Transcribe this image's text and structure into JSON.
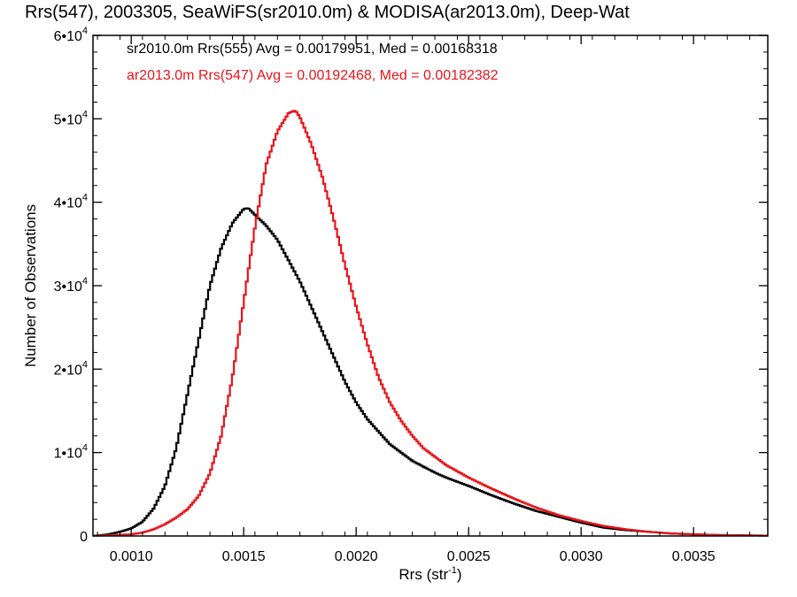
{
  "chart_data": {
    "type": "line",
    "title": "Rrs(547), 2003305, SeaWiFS(sr2010.0m) & MODISA(ar2013.0m), Deep-Wat",
    "xlabel": "Rrs (str",
    "xlabel_sup": "-1",
    "xlabel_close": ")",
    "ylabel": "Number of Observations",
    "xlim": [
      0.00083,
      0.00383
    ],
    "ylim": [
      0,
      60000
    ],
    "grid": false,
    "x_ticks": [
      {
        "value": 0.001,
        "label": "0.0010"
      },
      {
        "value": 0.0015,
        "label": "0.0015"
      },
      {
        "value": 0.002,
        "label": "0.0020"
      },
      {
        "value": 0.0025,
        "label": "0.0025"
      },
      {
        "value": 0.003,
        "label": "0.0030"
      },
      {
        "value": 0.0035,
        "label": "0.0035"
      }
    ],
    "y_ticks": [
      {
        "value": 0,
        "label": "0",
        "exp": ""
      },
      {
        "value": 10000,
        "label": "1•10",
        "exp": "4"
      },
      {
        "value": 20000,
        "label": "2•10",
        "exp": "4"
      },
      {
        "value": 30000,
        "label": "3•10",
        "exp": "4"
      },
      {
        "value": 40000,
        "label": "4•10",
        "exp": "4"
      },
      {
        "value": 50000,
        "label": "5•10",
        "exp": "4"
      },
      {
        "value": 60000,
        "label": "6•10",
        "exp": "4"
      }
    ],
    "annotations": [
      {
        "text": "sr2010.0m Rrs(555) Avg = 0.00179951, Med = 0.00168318",
        "color": "#000000"
      },
      {
        "text": "ar2013.0m Rrs(547) Avg = 0.00192468, Med = 0.00182382",
        "color": "#e8141c"
      }
    ],
    "series": [
      {
        "color": "#000000",
        "x": [
          0.00083,
          0.0009,
          0.00095,
          0.001,
          0.00105,
          0.0011,
          0.00115,
          0.0012,
          0.00125,
          0.0013,
          0.00135,
          0.0014,
          0.00145,
          0.0015,
          0.00152,
          0.00155,
          0.0016,
          0.00165,
          0.0017,
          0.00175,
          0.0018,
          0.00185,
          0.0019,
          0.00195,
          0.002,
          0.00205,
          0.0021,
          0.00215,
          0.0022,
          0.00225,
          0.0023,
          0.00235,
          0.0024,
          0.0025,
          0.0026,
          0.0027,
          0.0028,
          0.0029,
          0.003,
          0.0031,
          0.0032,
          0.0033,
          0.0034,
          0.0035,
          0.0036,
          0.0037,
          0.00383
        ],
        "y": [
          0,
          200,
          500,
          900,
          1700,
          3300,
          6000,
          10500,
          17000,
          23500,
          30000,
          34500,
          37500,
          39200,
          39300,
          38500,
          37200,
          35500,
          33000,
          30500,
          27500,
          24500,
          21500,
          18500,
          16000,
          14000,
          12500,
          11000,
          10000,
          9000,
          8300,
          7600,
          7000,
          6000,
          4900,
          3900,
          3000,
          2300,
          1600,
          1000,
          700,
          500,
          300,
          200,
          120,
          80,
          40
        ]
      },
      {
        "color": "#e8141c",
        "x": [
          0.00083,
          0.001,
          0.00105,
          0.0011,
          0.00115,
          0.0012,
          0.00125,
          0.0013,
          0.00135,
          0.0014,
          0.00145,
          0.0015,
          0.00155,
          0.0016,
          0.00165,
          0.0017,
          0.00173,
          0.00175,
          0.0018,
          0.00185,
          0.0019,
          0.00195,
          0.002,
          0.00205,
          0.0021,
          0.00215,
          0.0022,
          0.00225,
          0.0023,
          0.0024,
          0.0025,
          0.0026,
          0.0027,
          0.0028,
          0.0029,
          0.003,
          0.0031,
          0.0032,
          0.0033,
          0.0034,
          0.0035,
          0.0036,
          0.0037,
          0.00383
        ],
        "y": [
          0,
          200,
          400,
          800,
          1400,
          2200,
          3200,
          4800,
          7500,
          12000,
          19000,
          28000,
          37000,
          44500,
          48500,
          50700,
          51000,
          50200,
          47000,
          43000,
          38000,
          32500,
          27500,
          23000,
          19000,
          16000,
          13800,
          12000,
          10500,
          8500,
          7000,
          5700,
          4500,
          3400,
          2500,
          1800,
          1200,
          800,
          500,
          300,
          200,
          120,
          80,
          40
        ]
      }
    ]
  }
}
